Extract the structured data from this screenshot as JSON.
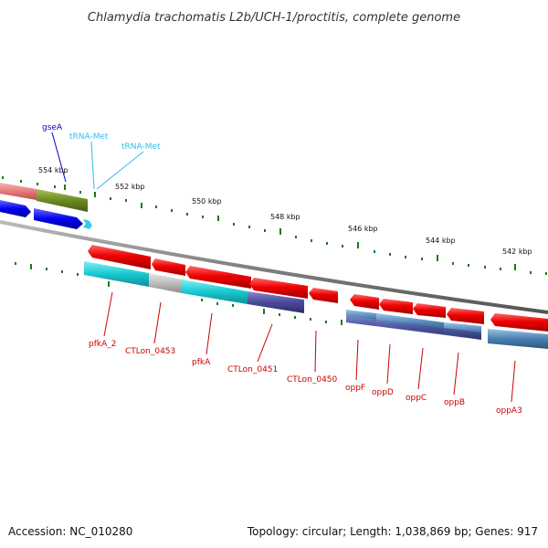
{
  "title": "Chlamydia trachomatis L2b/UCH-1/proctitis, complete genome",
  "footer": {
    "accession": "Accession: NC_010280",
    "stats": "Topology: circular; Length: 1,038,869 bp; Genes: 917"
  },
  "scale": {
    "unit": "kbp",
    "ticks": [
      "554 kbp",
      "552 kbp",
      "550 kbp",
      "548 kbp",
      "546 kbp",
      "544 kbp",
      "542 kbp"
    ]
  },
  "genes": {
    "top": [
      "gseA",
      "tRNA-Met",
      "tRNA-Met"
    ],
    "bottom": [
      "pfkA_2",
      "CTLon_0453",
      "pfkA",
      "CTLon_0451",
      "CTLon_0450",
      "oppF",
      "oppD",
      "oppC",
      "oppB",
      "oppA3"
    ]
  },
  "colors": {
    "forward_gene": "#e00000",
    "cog_cyan": "#18c8d0",
    "cog_purple": "#4b4a9a",
    "cog_steel": "#4a7fb0",
    "cog_gray": "#b8b8b8",
    "cog_olive": "#6b8a22",
    "cog_pink": "#e87a7a",
    "reverse_blue": "#0000ee",
    "backbone": "#808080",
    "tick": "#1a7a1a"
  }
}
